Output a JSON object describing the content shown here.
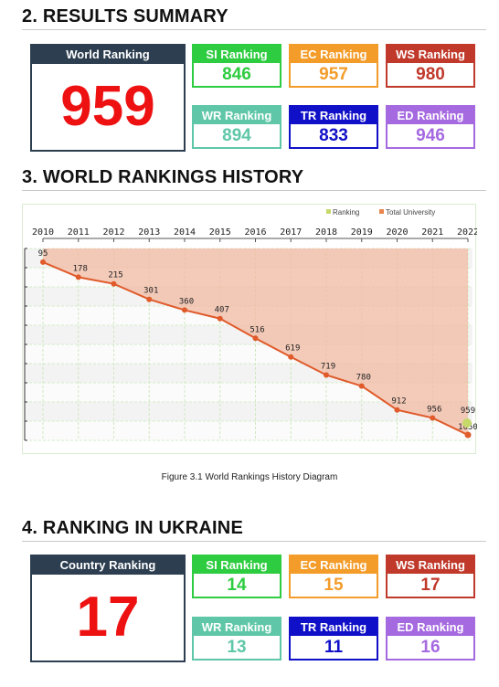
{
  "results": {
    "title": "2. RESULTS SUMMARY",
    "main": {
      "label": "World Ranking",
      "value": "959"
    },
    "boxes": [
      {
        "label": "SI Ranking",
        "value": "846",
        "color": "#2ecc40"
      },
      {
        "label": "EC Ranking",
        "value": "957",
        "color": "#f39c2a"
      },
      {
        "label": "WS Ranking",
        "value": "980",
        "color": "#c0392b"
      },
      {
        "label": "WR Ranking",
        "value": "894",
        "color": "#5fc7a8"
      },
      {
        "label": "TR Ranking",
        "value": "833",
        "color": "#1010c8"
      },
      {
        "label": "ED Ranking",
        "value": "946",
        "color": "#a569e0"
      }
    ]
  },
  "history": {
    "title": "3. WORLD RANKINGS HISTORY",
    "caption": "Figure 3.1 World Rankings History Diagram"
  },
  "ukraine": {
    "title": "4. RANKING IN UKRAINE",
    "main": {
      "label": "Country Ranking",
      "value": "17"
    },
    "boxes": [
      {
        "label": "SI Ranking",
        "value": "14",
        "color": "#2ecc40"
      },
      {
        "label": "EC Ranking",
        "value": "15",
        "color": "#f39c2a"
      },
      {
        "label": "WS Ranking",
        "value": "17",
        "color": "#c0392b"
      },
      {
        "label": "WR Ranking",
        "value": "13",
        "color": "#5fc7a8"
      },
      {
        "label": "TR Ranking",
        "value": "11",
        "color": "#1010c8"
      },
      {
        "label": "ED Ranking",
        "value": "16",
        "color": "#a569e0"
      }
    ]
  },
  "chart_data": {
    "type": "line",
    "legend": [
      "Ranking",
      "Total University"
    ],
    "legend_colors": [
      "#c4d96a",
      "#e8864e"
    ],
    "legend_placement": "top-right",
    "x": [
      "2010",
      "2011",
      "2012",
      "2013",
      "2014",
      "2015",
      "2016",
      "2017",
      "2018",
      "2019",
      "2020",
      "2021",
      "2022"
    ],
    "series": [
      {
        "name": "Ranking",
        "values": [
          95,
          178,
          215,
          301,
          360,
          407,
          516,
          619,
          719,
          780,
          912,
          956,
          959
        ],
        "color": "#e05a2a"
      },
      {
        "name": "Total University",
        "values": [
          null,
          null,
          null,
          null,
          null,
          null,
          null,
          null,
          null,
          null,
          null,
          null,
          1050
        ],
        "color": "#f4b8a0"
      }
    ],
    "labels": [
      "95",
      "178",
      "215",
      "301",
      "360",
      "407",
      "516",
      "619",
      "719",
      "780",
      "912",
      "956",
      "959",
      "1050"
    ],
    "y_inverted": true,
    "ylim": [
      1050,
      95
    ],
    "grid": true
  }
}
